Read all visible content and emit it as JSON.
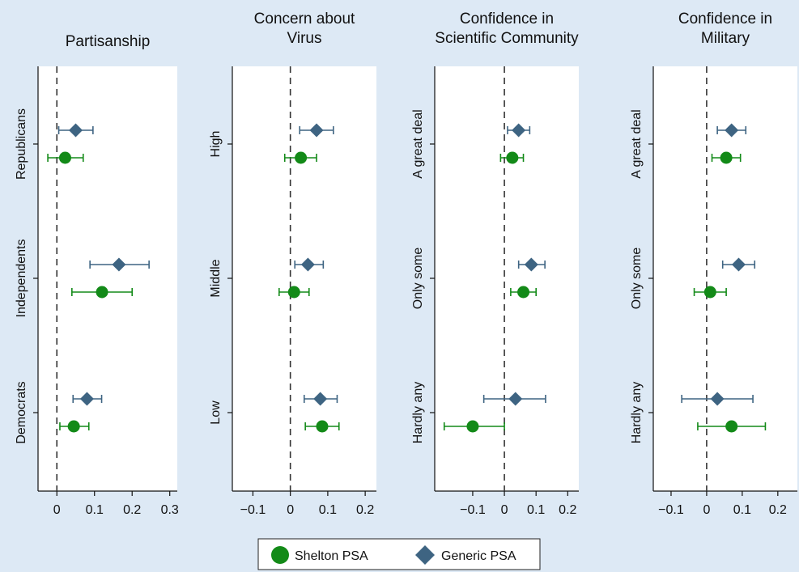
{
  "chart_data": [
    {
      "type": "scatter",
      "title": "Partisanship",
      "title_lines": [
        "Partisanship"
      ],
      "xlim": [
        -0.05,
        0.32
      ],
      "xticks": [
        0,
        0.1,
        0.2,
        0.3
      ],
      "xtick_labels": [
        "0",
        "0.1",
        "0.2",
        "0.3"
      ],
      "categories": [
        "Republicans",
        "Independents",
        "Democrats"
      ],
      "series": [
        {
          "name": "Generic PSA",
          "marker": "diamond",
          "color": "#3e6482",
          "values": [
            0.05,
            0.165,
            0.08
          ],
          "ci_low": [
            0.005,
            0.088,
            0.043
          ],
          "ci_high": [
            0.096,
            0.245,
            0.119
          ]
        },
        {
          "name": "Shelton PSA",
          "marker": "circle",
          "color": "#138a18",
          "values": [
            0.022,
            0.12,
            0.045
          ],
          "ci_low": [
            -0.024,
            0.04,
            0.008
          ],
          "ci_high": [
            0.07,
            0.2,
            0.085
          ]
        }
      ],
      "reference_line": 0
    },
    {
      "type": "scatter",
      "title": "Concern about Virus",
      "title_lines": [
        "Concern about",
        "Virus"
      ],
      "xlim": [
        -0.155,
        0.23
      ],
      "xticks": [
        -0.1,
        0,
        0.1,
        0.2
      ],
      "xtick_labels": [
        "−0.1",
        "0",
        "0.1",
        "0.2"
      ],
      "categories": [
        "High",
        "Middle",
        "Low"
      ],
      "series": [
        {
          "name": "Generic PSA",
          "marker": "diamond",
          "color": "#3e6482",
          "values": [
            0.07,
            0.047,
            0.08
          ],
          "ci_low": [
            0.025,
            0.012,
            0.037
          ],
          "ci_high": [
            0.115,
            0.088,
            0.125
          ]
        },
        {
          "name": "Shelton PSA",
          "marker": "circle",
          "color": "#138a18",
          "values": [
            0.028,
            0.01,
            0.085
          ],
          "ci_low": [
            -0.015,
            -0.03,
            0.04
          ],
          "ci_high": [
            0.07,
            0.05,
            0.13
          ]
        }
      ],
      "reference_line": 0
    },
    {
      "type": "scatter",
      "title": "Confidence in Scientific Community",
      "title_lines": [
        "Confidence in",
        "Scientific Community"
      ],
      "xlim": [
        -0.22,
        0.235
      ],
      "xticks": [
        -0.1,
        0,
        0.1,
        0.2
      ],
      "xtick_labels": [
        "−0.1",
        "0",
        "0.1",
        "0.2"
      ],
      "categories": [
        "A great deal",
        "Only some",
        "Hardly any"
      ],
      "series": [
        {
          "name": "Generic PSA",
          "marker": "diamond",
          "color": "#3e6482",
          "values": [
            0.045,
            0.085,
            0.035
          ],
          "ci_low": [
            0.01,
            0.045,
            -0.065
          ],
          "ci_high": [
            0.08,
            0.128,
            0.13
          ]
        },
        {
          "name": "Shelton PSA",
          "marker": "circle",
          "color": "#138a18",
          "values": [
            0.025,
            0.06,
            -0.1
          ],
          "ci_low": [
            -0.012,
            0.02,
            -0.19
          ],
          "ci_high": [
            0.06,
            0.1,
            0.0
          ]
        }
      ],
      "reference_line": 0
    },
    {
      "type": "scatter",
      "title": "Confidence in Military",
      "title_lines": [
        "Confidence in",
        "Military"
      ],
      "xlim": [
        -0.15,
        0.255
      ],
      "xticks": [
        -0.1,
        0,
        0.1,
        0.2
      ],
      "xtick_labels": [
        "−0.1",
        "0",
        "0.1",
        "0.2"
      ],
      "categories": [
        "A great deal",
        "Only some",
        "Hardly any"
      ],
      "series": [
        {
          "name": "Generic PSA",
          "marker": "diamond",
          "color": "#3e6482",
          "values": [
            0.07,
            0.09,
            0.03
          ],
          "ci_low": [
            0.03,
            0.045,
            -0.07
          ],
          "ci_high": [
            0.11,
            0.135,
            0.13
          ]
        },
        {
          "name": "Shelton PSA",
          "marker": "circle",
          "color": "#138a18",
          "values": [
            0.055,
            0.01,
            0.07
          ],
          "ci_low": [
            0.015,
            -0.035,
            -0.025
          ],
          "ci_high": [
            0.095,
            0.055,
            0.165
          ]
        }
      ],
      "reference_line": 0
    }
  ],
  "legend": {
    "placement": "bottom-center",
    "items": [
      {
        "label": "Shelton PSA",
        "marker": "circle",
        "color": "#138a18"
      },
      {
        "label": "Generic PSA",
        "marker": "diamond",
        "color": "#3e6482"
      }
    ]
  },
  "colors": {
    "background": "#dde9f5",
    "plot_background": "#ffffff",
    "shelton": "#138a18",
    "generic": "#3e6482"
  }
}
